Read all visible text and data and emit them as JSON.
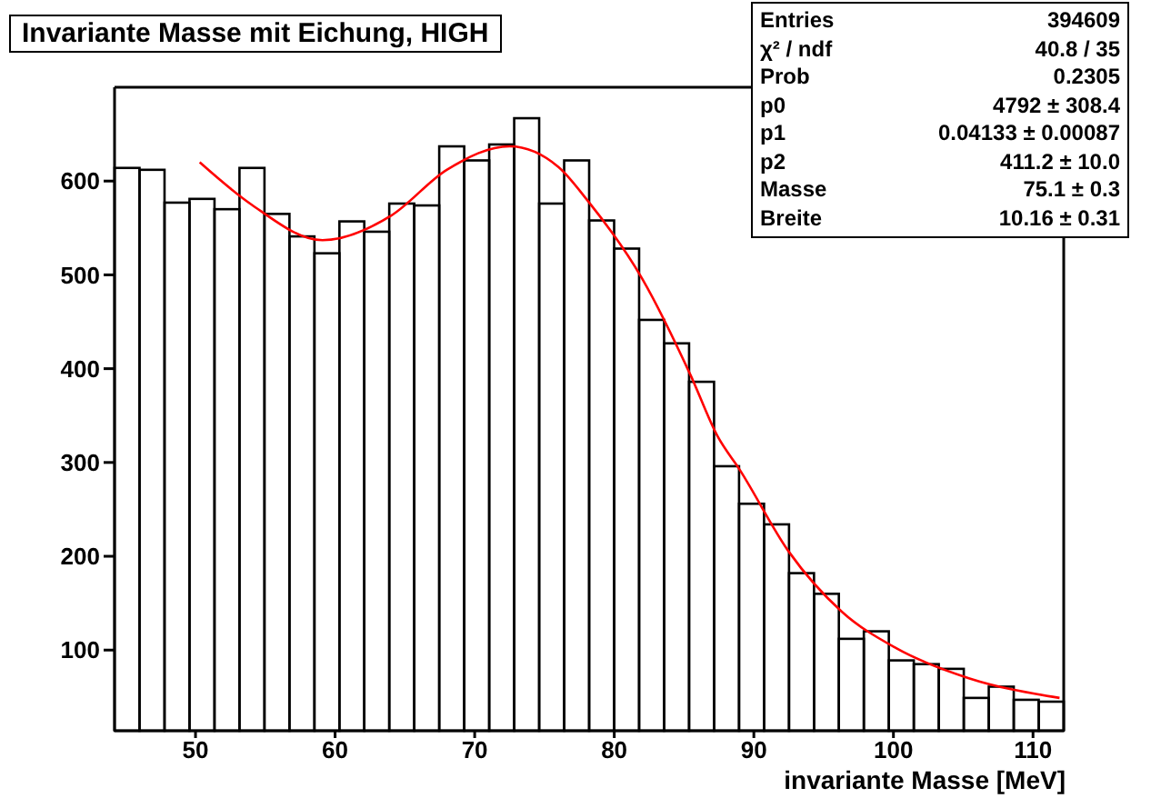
{
  "chart_data": {
    "type": "histogram",
    "title": "Invariante Masse mit Eichung, HIGH",
    "xlabel": "invariante Masse [MeV]",
    "bins": [
      44.2,
      45.99,
      47.78,
      49.57,
      51.36,
      53.15,
      54.94,
      56.73,
      58.52,
      60.31,
      62.09,
      63.88,
      65.67,
      67.46,
      69.25,
      71.04,
      72.83,
      74.62,
      76.41,
      78.2,
      79.99,
      81.78,
      83.57,
      85.36,
      87.15,
      88.94,
      90.73,
      92.52,
      94.31,
      96.09,
      97.88,
      99.67,
      101.46,
      103.25,
      105.04,
      106.83,
      108.62,
      110.41,
      112.2
    ],
    "values": [
      614,
      612,
      577,
      581,
      570,
      614,
      565,
      541,
      523,
      557,
      546,
      576,
      574,
      637,
      622,
      639,
      667,
      576,
      622,
      558,
      528,
      452,
      427,
      386,
      296,
      256,
      234,
      182,
      160,
      112,
      120,
      89,
      85,
      80,
      49,
      61,
      47,
      45
    ],
    "color": "#000000",
    "series": [
      {
        "type": "line",
        "color": "#ff0000",
        "x": [
          50.3,
          54,
          59.1,
          64,
          68,
          72.5,
          76,
          78.1,
          82,
          85.5,
          87.4,
          89,
          92.5,
          96.3,
          100.2,
          105.4,
          111.9
        ],
        "values": [
          620,
          575,
          537,
          563,
          612,
          637,
          615,
          579,
          496,
          392,
          328,
          292,
          205,
          141,
          102,
          70,
          49
        ]
      }
    ],
    "xlim": [
      44.2,
      112.2
    ],
    "ylim": [
      14,
      700
    ],
    "xticks": [
      50,
      60,
      70,
      80,
      90,
      100,
      110
    ],
    "yticks": [
      100,
      200,
      300,
      400,
      500,
      600
    ],
    "annotations": [
      "Entries\t394609",
      "χ² / ndf\t40.8 / 35",
      "Prob\t0.2305",
      "p0\t4792 ± 308.4",
      "p1\t0.04133 ± 0.00087",
      "p2\t411.2 ± 10.0",
      "Masse\t75.1 ± 0.3",
      "Breite\t10.16 ± 0.31"
    ]
  }
}
